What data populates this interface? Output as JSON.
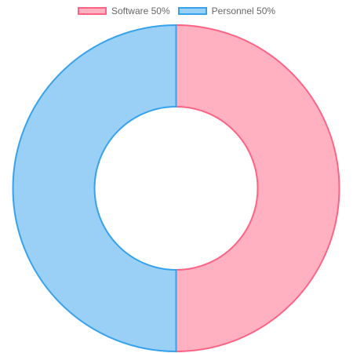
{
  "chart_data": {
    "type": "pie",
    "variant": "doughnut",
    "categories": [
      "Software",
      "Personnel"
    ],
    "values": [
      50,
      50
    ],
    "legend_labels": [
      "Software 50%",
      "Personnel 50%"
    ],
    "legend_position": "top",
    "colors": {
      "fill": [
        "#ffb1c1",
        "#9ad0f5"
      ],
      "border": [
        "#ff6384",
        "#36a2eb"
      ]
    }
  }
}
